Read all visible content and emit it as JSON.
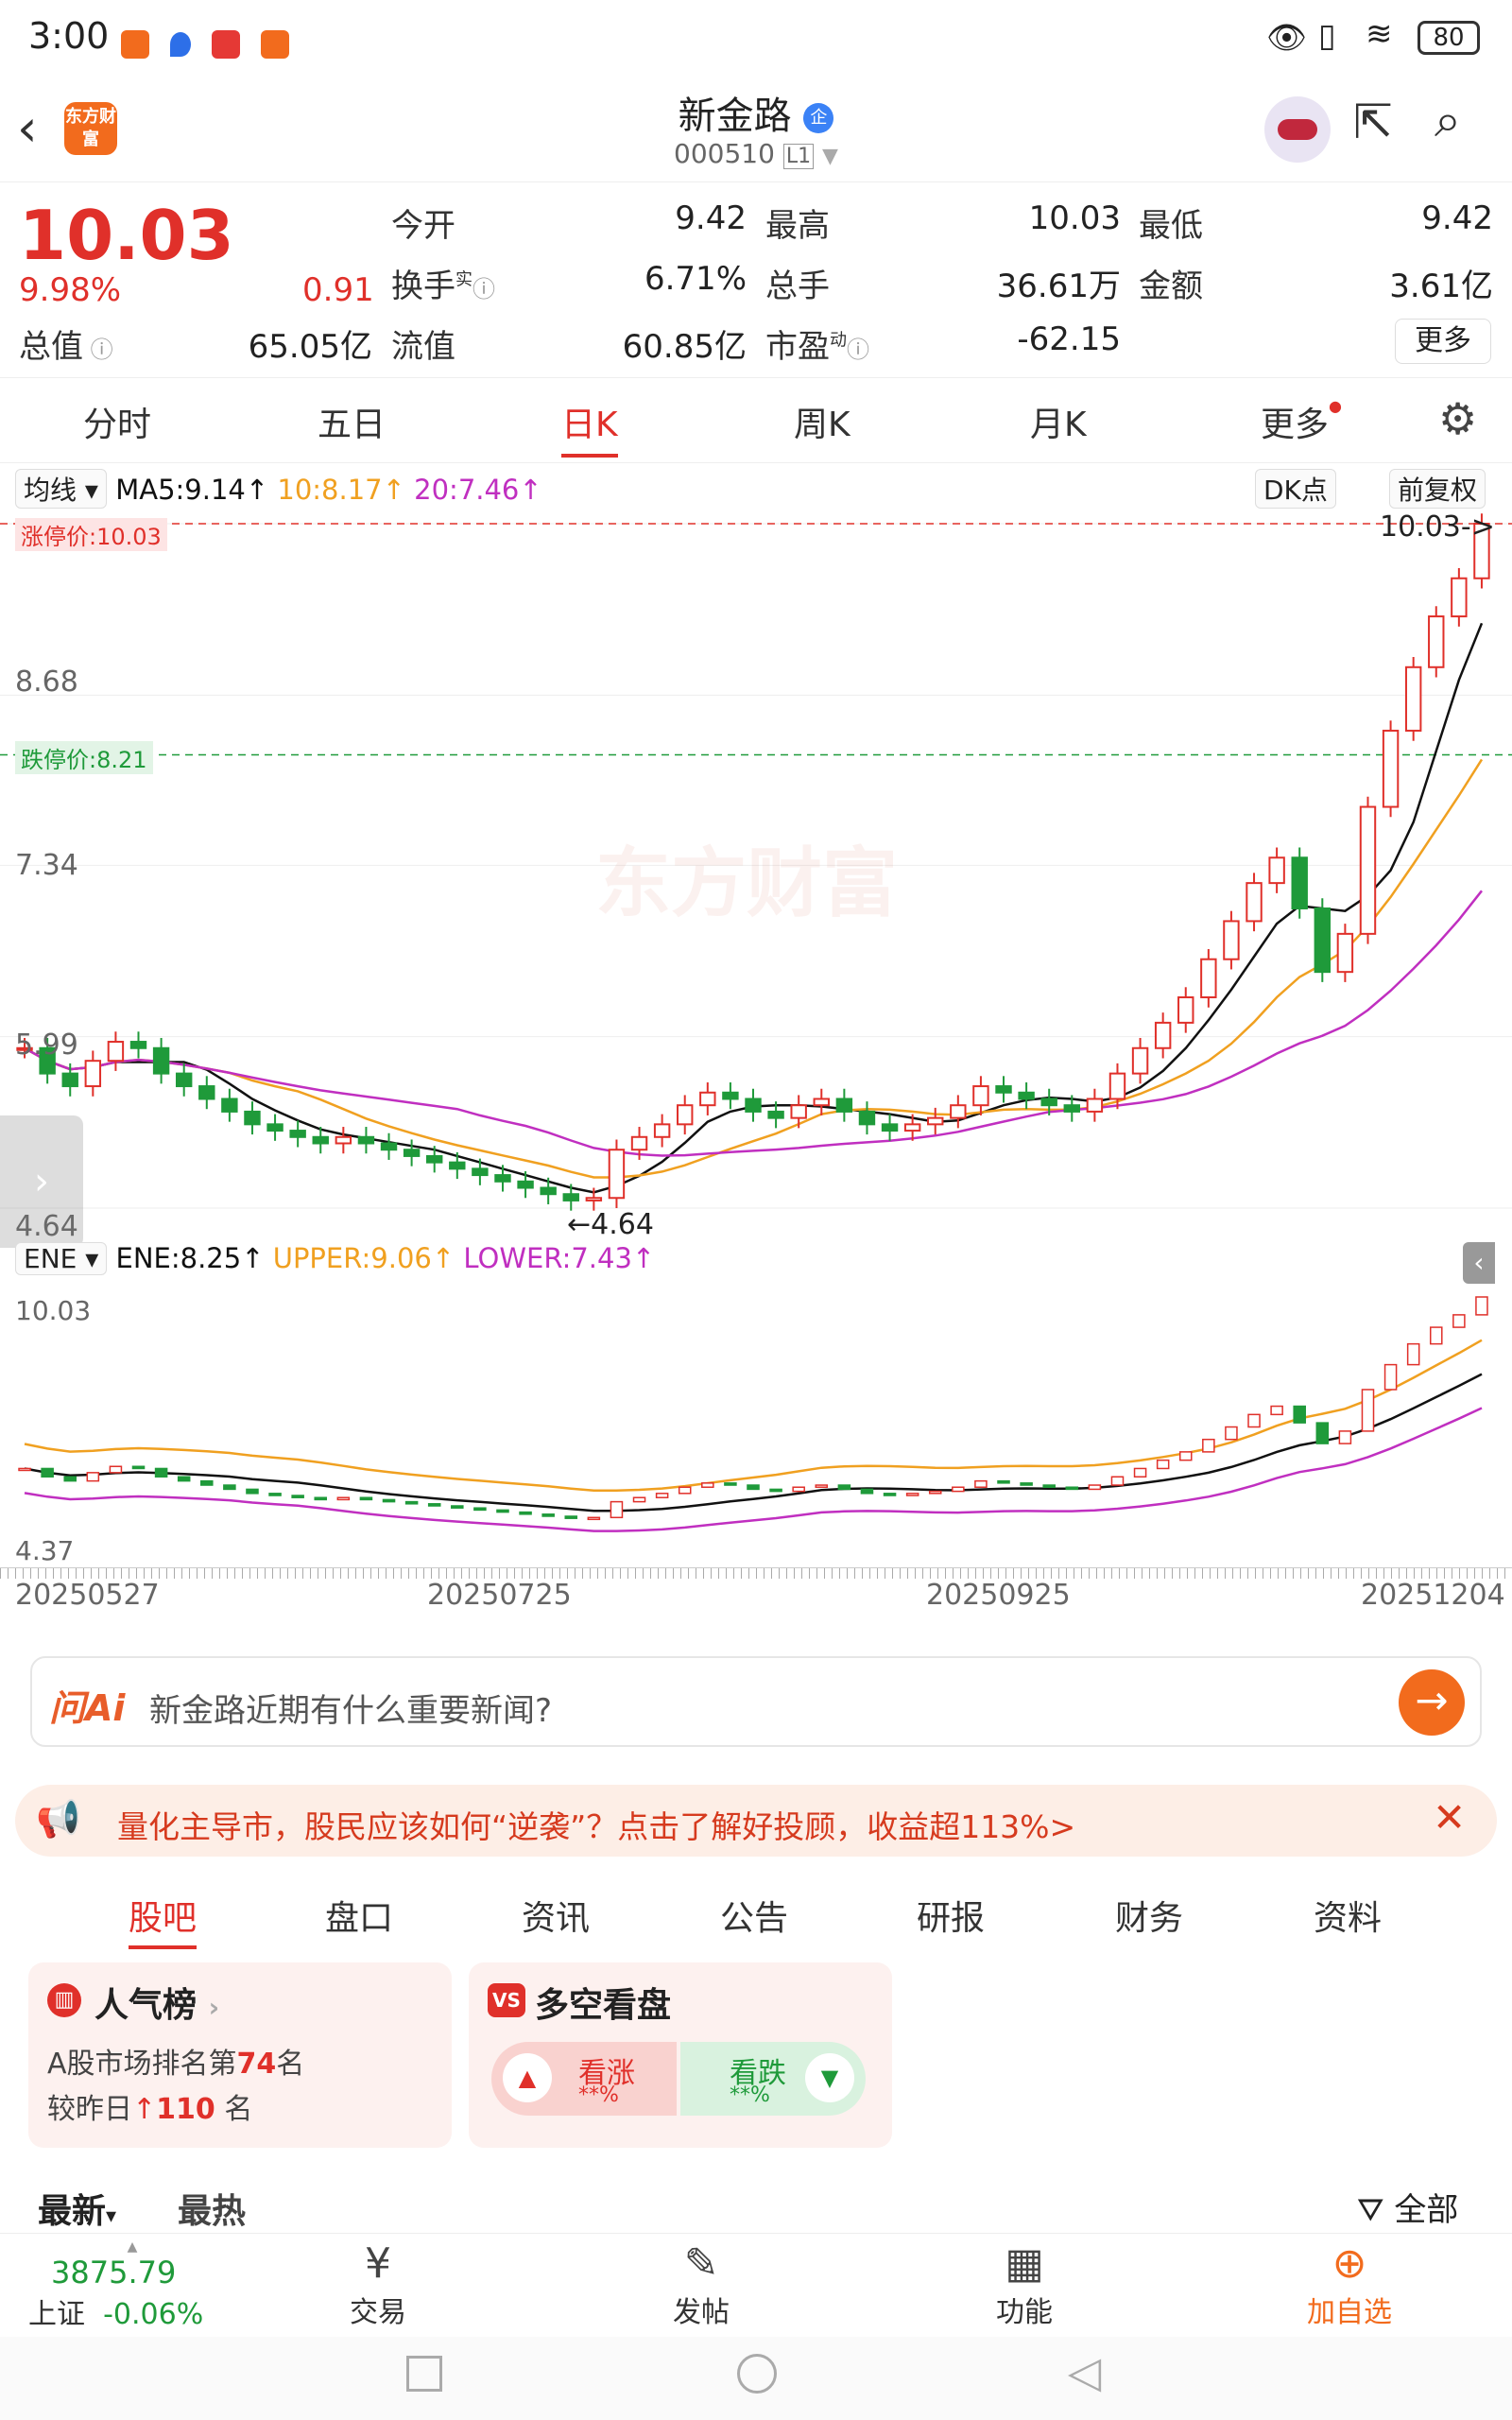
{
  "status_bar": {
    "time": "3:00",
    "battery": "80"
  },
  "header": {
    "logo_text": "东方财富",
    "stock_name": "新金路",
    "stock_code": "000510",
    "code_badge": "L1",
    "corp_badge": "企"
  },
  "quote": {
    "price": "10.03",
    "change_pct": "9.98%",
    "change_amt": "0.91",
    "market_cap_label": "总值",
    "market_cap": "65.05亿",
    "open_label": "今开",
    "open": "9.42",
    "high_label": "最高",
    "high": "10.03",
    "low_label": "最低",
    "low": "9.42",
    "turnover_label": "换手",
    "turnover_sup": "实",
    "turnover": "6.71%",
    "volume_label": "总手",
    "volume": "36.61万",
    "amount_label": "金额",
    "amount": "3.61亿",
    "float_cap_label": "流值",
    "float_cap": "60.85亿",
    "pe_label": "市盈",
    "pe_sup": "动",
    "pe": "-62.15",
    "more_label": "更多"
  },
  "ktabs": [
    {
      "label": "分时"
    },
    {
      "label": "五日"
    },
    {
      "label": "日K"
    },
    {
      "label": "周K"
    },
    {
      "label": "月K"
    },
    {
      "label": "更多"
    }
  ],
  "chart_header": {
    "ma_select": "均线",
    "ma5": "MA5:9.14↑",
    "ma10": "10:8.17↑",
    "ma20": "20:7.46↑",
    "dk": "DK点",
    "adjust": "前复权"
  },
  "chart_labels": {
    "limit_up": "涨停价:10.03",
    "limit_down": "跌停价:8.21",
    "y_top_marker": "10.03->",
    "y_868": "8.68",
    "y_734": "7.34",
    "y_599": "5.99",
    "y_464": "4.64",
    "low_marker": "←4.64",
    "watermark": "东方财富"
  },
  "ene_header": {
    "select": "ENE",
    "ene": "ENE:8.25↑",
    "upper": "UPPER:9.06↑",
    "lower": "LOWER:7.43↑"
  },
  "ene_labels": {
    "top": "10.03",
    "bottom": "4.37"
  },
  "dates": [
    "20250527",
    "20250725",
    "20250925",
    "20251204"
  ],
  "chart_data": {
    "type": "candlestick",
    "title": "",
    "series": [
      {
        "name": "MA5",
        "last": 9.14
      },
      {
        "name": "MA10",
        "last": 8.17
      },
      {
        "name": "MA20",
        "last": 7.46
      },
      {
        "name": "ENE",
        "last": 8.25
      },
      {
        "name": "UPPER",
        "last": 9.06
      },
      {
        "name": "LOWER",
        "last": 7.43
      }
    ],
    "ylim": [
      4.64,
      10.03
    ],
    "y_ticks": [
      10.03,
      8.68,
      7.34,
      5.99,
      4.64
    ],
    "limit_up": 10.03,
    "limit_down": 8.21,
    "x_labels": [
      "20250527",
      "20250725",
      "20250925",
      "20251204"
    ],
    "close_path": [
      5.9,
      5.7,
      5.6,
      5.8,
      5.95,
      5.9,
      5.7,
      5.6,
      5.5,
      5.4,
      5.3,
      5.25,
      5.2,
      5.15,
      5.2,
      5.15,
      5.1,
      5.05,
      5.0,
      4.95,
      4.9,
      4.85,
      4.8,
      4.75,
      4.7,
      4.72,
      5.1,
      5.2,
      5.3,
      5.45,
      5.55,
      5.5,
      5.4,
      5.35,
      5.45,
      5.5,
      5.4,
      5.3,
      5.25,
      5.3,
      5.35,
      5.45,
      5.6,
      5.55,
      5.5,
      5.45,
      5.4,
      5.5,
      5.7,
      5.9,
      6.1,
      6.3,
      6.6,
      6.9,
      7.2,
      7.4,
      7.0,
      6.5,
      6.8,
      7.8,
      8.4,
      8.9,
      9.3,
      9.6,
      10.03
    ]
  },
  "ask_ai": {
    "brand": "问Ai",
    "placeholder": "新金路近期有什么重要新闻?"
  },
  "banner": {
    "text": "量化主导市，股民应该如何“逆袭”？点击了解好投顾，收益超113%>"
  },
  "subtabs": [
    {
      "label": "股吧"
    },
    {
      "label": "盘口"
    },
    {
      "label": "资讯"
    },
    {
      "label": "公告"
    },
    {
      "label": "研报"
    },
    {
      "label": "财务"
    },
    {
      "label": "资料"
    }
  ],
  "popularity": {
    "title": "人气榜",
    "rank_line": "A股市场排名第",
    "rank": "74",
    "rank_suffix": "名",
    "change_prefix": "较昨日",
    "change": "110",
    "change_suffix": "名"
  },
  "longshort": {
    "title": "多空看盘",
    "bull": "看涨",
    "bull_val": "**%",
    "bear": "看跌",
    "bear_val": "**%"
  },
  "feed_tabs": {
    "latest": "最新",
    "hottest": "最热",
    "filter": "全部"
  },
  "bottom_nav": {
    "index_value": "3875.79",
    "index_name": "上证",
    "index_change": "-0.06%",
    "trade": "交易",
    "post": "发帖",
    "func": "功能",
    "add": "加自选"
  },
  "colors": {
    "up": "#e0302a",
    "down": "#1f9a3a",
    "ma5": "#111111",
    "ma10": "#f0a020",
    "ma20": "#c02fc0",
    "accent": "#f26b1d"
  }
}
